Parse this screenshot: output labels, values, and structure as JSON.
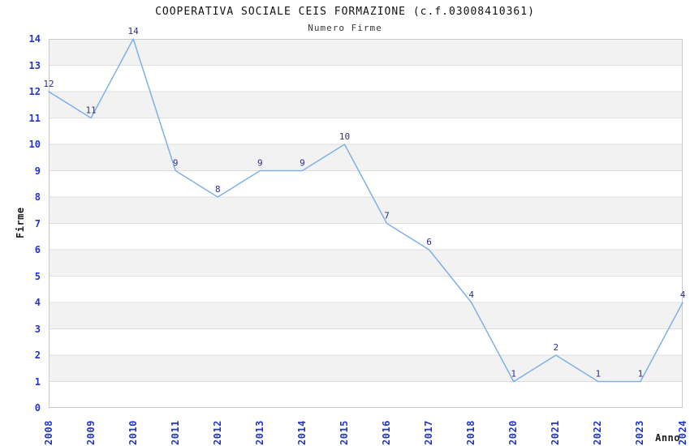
{
  "chart_data": {
    "type": "line",
    "title": "COOPERATIVA SOCIALE CEIS FORMAZIONE (c.f.03008410361)",
    "subtitle": "Numero Firme",
    "xlabel": "Anno",
    "ylabel": "Firme",
    "categories": [
      "2008",
      "2009",
      "2010",
      "2011",
      "2012",
      "2013",
      "2014",
      "2015",
      "2016",
      "2017",
      "2018",
      "2020",
      "2021",
      "2022",
      "2023",
      "2024"
    ],
    "values": [
      12,
      11,
      14,
      9,
      8,
      9,
      9,
      10,
      7,
      6,
      4,
      1,
      2,
      1,
      1,
      4
    ],
    "ylim": [
      0,
      14
    ],
    "y_tick_step": 1,
    "grid": "horizontal-alternating-bands",
    "legend_position": "none",
    "point_labels_visible": true,
    "colors": {
      "line": "#7fb0e8",
      "axis_tick_label": "#2135cd",
      "point_label": "#2c2f86",
      "band_fill": "#f2f2f2",
      "gridline": "#dedede",
      "plot_border": "#c9c9c9",
      "title": "#111111",
      "axis_title": "#1a1a1a",
      "background": "#ffffff"
    }
  }
}
